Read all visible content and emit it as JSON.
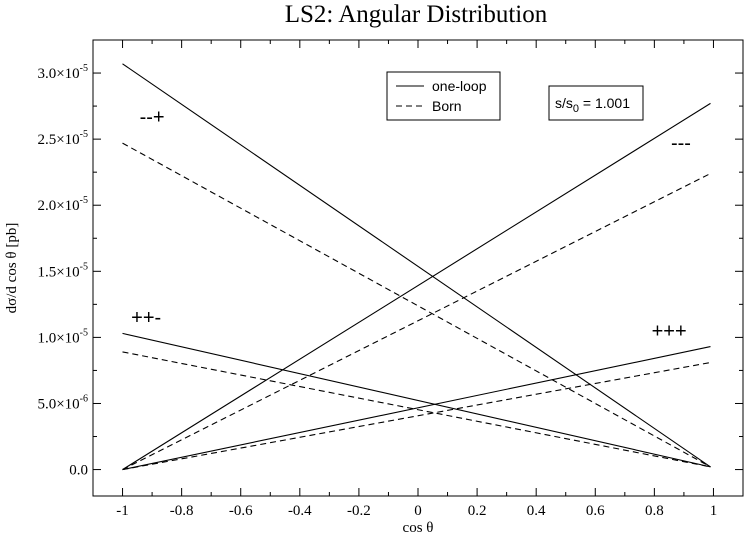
{
  "chart_data": {
    "type": "line",
    "title": "LS2: Angular Distribution",
    "xlabel": "cos θ",
    "ylabel": "dσ/d cos θ [pb]",
    "xlim": [
      -1.1,
      1.1
    ],
    "ylim": [
      -2e-06,
      3.25e-05
    ],
    "x_ticks": [
      {
        "value": -1,
        "label": "-1"
      },
      {
        "value": -0.8,
        "label": "-0.8"
      },
      {
        "value": -0.6,
        "label": "-0.6"
      },
      {
        "value": -0.4,
        "label": "-0.4"
      },
      {
        "value": -0.2,
        "label": "-0.2"
      },
      {
        "value": 0,
        "label": "0"
      },
      {
        "value": 0.2,
        "label": "0.2"
      },
      {
        "value": 0.4,
        "label": "0.4"
      },
      {
        "value": 0.6,
        "label": "0.6"
      },
      {
        "value": 0.8,
        "label": "0.8"
      },
      {
        "value": 1,
        "label": "1"
      }
    ],
    "y_ticks": [
      {
        "value": 0,
        "mant": "0.0",
        "exp": ""
      },
      {
        "value": 5e-06,
        "mant": "5.0×10",
        "exp": "-6"
      },
      {
        "value": 1e-05,
        "mant": "1.0×10",
        "exp": "-5"
      },
      {
        "value": 1.5e-05,
        "mant": "1.5×10",
        "exp": "-5"
      },
      {
        "value": 2e-05,
        "mant": "2.0×10",
        "exp": "-5"
      },
      {
        "value": 2.5e-05,
        "mant": "2.5×10",
        "exp": "-5"
      },
      {
        "value": 3e-05,
        "mant": "3.0×10",
        "exp": "-5"
      }
    ],
    "series": [
      {
        "group": "--+",
        "style": "solid",
        "x": [
          -1,
          0.99
        ],
        "y": [
          3.07e-05,
          2e-07
        ]
      },
      {
        "group": "--+",
        "style": "dashed",
        "x": [
          -1,
          0.99
        ],
        "y": [
          2.47e-05,
          2e-07
        ]
      },
      {
        "group": "---",
        "style": "solid",
        "x": [
          -1,
          0.99
        ],
        "y": [
          0.0,
          2.77e-05
        ]
      },
      {
        "group": "---",
        "style": "dashed",
        "x": [
          -1,
          0.99
        ],
        "y": [
          0.0,
          2.24e-05
        ]
      },
      {
        "group": "++-",
        "style": "solid",
        "x": [
          -1,
          0.99
        ],
        "y": [
          1.03e-05,
          2e-07
        ]
      },
      {
        "group": "++-",
        "style": "dashed",
        "x": [
          -1,
          0.99
        ],
        "y": [
          8.9e-06,
          2e-07
        ]
      },
      {
        "group": "+++",
        "style": "solid",
        "x": [
          -1,
          0.99
        ],
        "y": [
          0.0,
          9.3e-06
        ]
      },
      {
        "group": "+++",
        "style": "dashed",
        "x": [
          -1,
          0.99
        ],
        "y": [
          0.0,
          8.1e-06
        ]
      }
    ],
    "legend": {
      "placement": "top-center",
      "entries": [
        {
          "label": "one-loop",
          "style": "solid"
        },
        {
          "label": "Born",
          "style": "dashed"
        }
      ]
    },
    "ratio_box": {
      "prefix": "s/s",
      "sub": "0",
      "suffix": " = 1.001"
    },
    "annotations": [
      {
        "text": "--+",
        "x": -0.9,
        "y": 2.62e-05
      },
      {
        "text": "---",
        "x": 0.89,
        "y": 2.42e-05
      },
      {
        "text": "++-",
        "x": -0.92,
        "y": 1.1e-05
      },
      {
        "text": "+++",
        "x": 0.85,
        "y": 1e-05
      }
    ],
    "grid": false
  }
}
